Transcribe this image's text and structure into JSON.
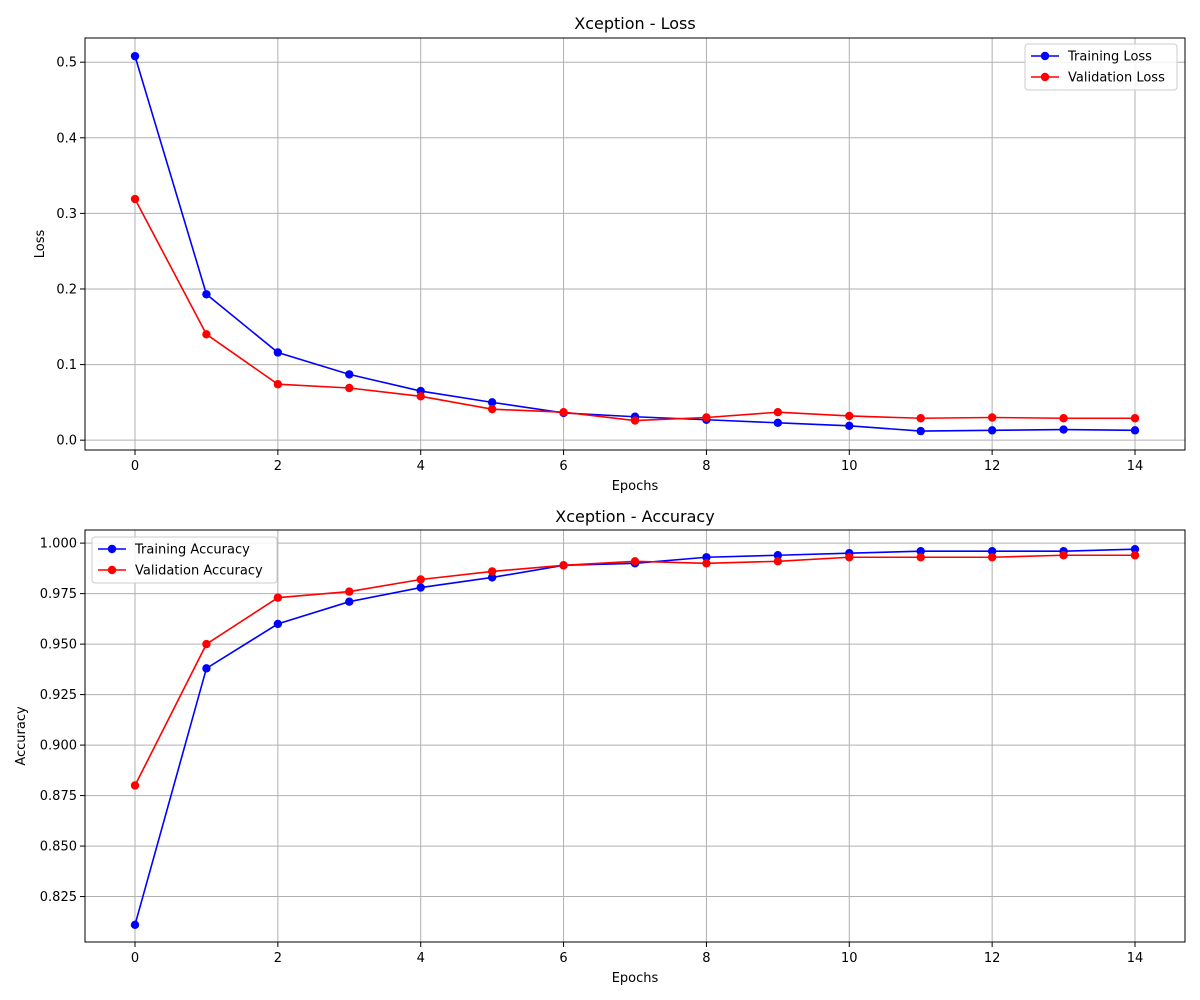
{
  "chart_data": [
    {
      "type": "line",
      "title": "Xception - Loss",
      "xlabel": "Epochs",
      "ylabel": "Loss",
      "xlim": [
        -0.7,
        14.7
      ],
      "ylim": [
        -0.013,
        0.532
      ],
      "x_ticks": [
        0,
        2,
        4,
        6,
        8,
        10,
        12,
        14
      ],
      "x_tick_labels": [
        "0",
        "2",
        "4",
        "6",
        "8",
        "10",
        "12",
        "14"
      ],
      "y_ticks": [
        0.0,
        0.1,
        0.2,
        0.3,
        0.4,
        0.5
      ],
      "y_tick_labels": [
        "0.0",
        "0.1",
        "0.2",
        "0.3",
        "0.4",
        "0.5"
      ],
      "grid": true,
      "legend_loc": "top-right",
      "x": [
        0,
        1,
        2,
        3,
        4,
        5,
        6,
        7,
        8,
        9,
        10,
        11,
        12,
        13,
        14
      ],
      "series": [
        {
          "name": "Training Loss",
          "color": "#0000ff",
          "values": [
            0.508,
            0.193,
            0.116,
            0.087,
            0.065,
            0.05,
            0.036,
            0.031,
            0.027,
            0.023,
            0.019,
            0.012,
            0.013,
            0.014,
            0.013
          ]
        },
        {
          "name": "Validation Loss",
          "color": "#ff0000",
          "values": [
            0.319,
            0.14,
            0.074,
            0.069,
            0.058,
            0.041,
            0.037,
            0.026,
            0.03,
            0.037,
            0.032,
            0.029,
            0.03,
            0.029,
            0.029
          ]
        }
      ]
    },
    {
      "type": "line",
      "title": "Xception - Accuracy",
      "xlabel": "Epochs",
      "ylabel": "Accuracy",
      "xlim": [
        -0.7,
        14.7
      ],
      "ylim": [
        0.8025,
        1.0065
      ],
      "x_ticks": [
        0,
        2,
        4,
        6,
        8,
        10,
        12,
        14
      ],
      "x_tick_labels": [
        "0",
        "2",
        "4",
        "6",
        "8",
        "10",
        "12",
        "14"
      ],
      "y_ticks": [
        0.825,
        0.85,
        0.875,
        0.9,
        0.925,
        0.95,
        0.975,
        1.0
      ],
      "y_tick_labels": [
        "0.825",
        "0.850",
        "0.875",
        "0.900",
        "0.925",
        "0.950",
        "0.975",
        "1.000"
      ],
      "grid": true,
      "legend_loc": "top-left",
      "x": [
        0,
        1,
        2,
        3,
        4,
        5,
        6,
        7,
        8,
        9,
        10,
        11,
        12,
        13,
        14
      ],
      "series": [
        {
          "name": "Training Accuracy",
          "color": "#0000ff",
          "values": [
            0.811,
            0.938,
            0.96,
            0.971,
            0.978,
            0.983,
            0.989,
            0.99,
            0.993,
            0.994,
            0.995,
            0.996,
            0.996,
            0.996,
            0.997
          ]
        },
        {
          "name": "Validation Accuracy",
          "color": "#ff0000",
          "values": [
            0.88,
            0.95,
            0.973,
            0.976,
            0.982,
            0.986,
            0.989,
            0.991,
            0.99,
            0.991,
            0.993,
            0.993,
            0.993,
            0.994,
            0.994
          ]
        }
      ]
    }
  ]
}
